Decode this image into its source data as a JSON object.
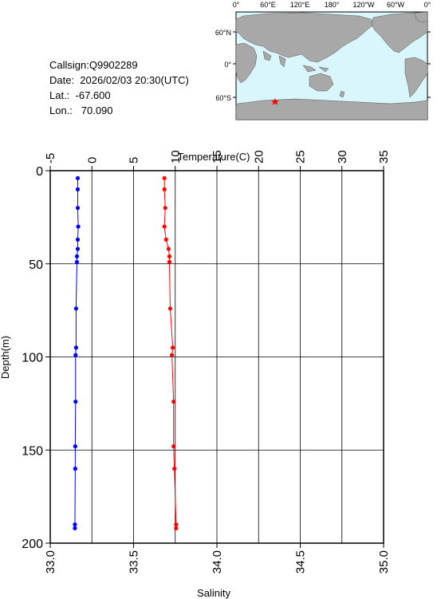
{
  "station": {
    "callsign": "Callsign:Q9902289",
    "date": "Date:  2026/02/03 20:30(UTC)",
    "lat": "Lat.:  -67.600",
    "lon": "Lon.:   70.090"
  },
  "map": {
    "top_ticks": [
      "0°",
      "60°E",
      "120°E",
      "180°",
      "120°W",
      "60°W",
      "0°"
    ],
    "lat_ticks": [
      "60°N",
      "0°",
      "60°S"
    ],
    "ocean_color": "#d8f6fb",
    "land_color": "#a8a8a8",
    "marker_color": "#ff0000",
    "marker_icon": "star"
  },
  "chart_data": {
    "type": "line",
    "xlabel_top": "Temperature(C)",
    "xlabel_bottom": "Salinity",
    "ylabel": "Depth(m)",
    "ylim": [
      0,
      200
    ],
    "y_ticks": [
      "0",
      "50",
      "100",
      "150",
      "200"
    ],
    "temp_lim": [
      -5,
      35
    ],
    "temp_ticks": [
      "-5",
      "0",
      "5",
      "10",
      "15",
      "20",
      "25",
      "30",
      "35"
    ],
    "sal_lim": [
      33.0,
      35.0
    ],
    "sal_ticks": [
      "33.0",
      "33.5",
      "34.0",
      "34.5",
      "35.0"
    ],
    "grid": true,
    "series": [
      {
        "name": "Temperature",
        "color": "#ff0000",
        "axis": "top",
        "points": [
          [
            8.7,
            4
          ],
          [
            8.7,
            10
          ],
          [
            8.8,
            20
          ],
          [
            8.7,
            30
          ],
          [
            8.9,
            37
          ],
          [
            9.2,
            42
          ],
          [
            9.3,
            46
          ],
          [
            9.3,
            49
          ],
          [
            9.4,
            74
          ],
          [
            9.7,
            95
          ],
          [
            9.6,
            99
          ],
          [
            9.8,
            124
          ],
          [
            9.8,
            148
          ],
          [
            9.9,
            160
          ],
          [
            10.1,
            190
          ],
          [
            10.1,
            192
          ]
        ]
      },
      {
        "name": "Salinity",
        "color": "#0000ff",
        "axis": "bottom",
        "points": [
          [
            33.165,
            4
          ],
          [
            33.165,
            10
          ],
          [
            33.165,
            20
          ],
          [
            33.168,
            30
          ],
          [
            33.165,
            37
          ],
          [
            33.165,
            42
          ],
          [
            33.16,
            46
          ],
          [
            33.16,
            49
          ],
          [
            33.155,
            74
          ],
          [
            33.155,
            95
          ],
          [
            33.152,
            99
          ],
          [
            33.152,
            124
          ],
          [
            33.15,
            148
          ],
          [
            33.15,
            160
          ],
          [
            33.148,
            190
          ],
          [
            33.148,
            192
          ]
        ]
      }
    ]
  }
}
